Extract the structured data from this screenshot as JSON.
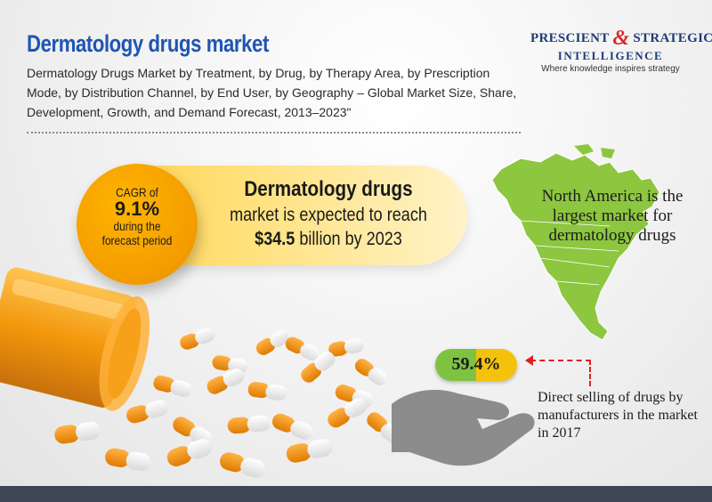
{
  "header": {
    "title": "Dermatology drugs market",
    "subtitle": "Dermatology Drugs Market by Treatment, by Drug, by Therapy Area, by Prescription Mode, by Distribution Channel, by End User, by Geography – Global Market Size, Share, Development, Growth, and Demand Forecast, 2013–2023\""
  },
  "logo": {
    "line1_a": "PRESCIENT",
    "amp": "&",
    "line1_b": "STRATEGIC",
    "line2": "INTELLIGENCE",
    "tagline": "Where knowledge inspires strategy"
  },
  "cagr": {
    "line1": "CAGR of",
    "value": "9.1%",
    "line3": "during the",
    "line4": "forecast period"
  },
  "forecast": {
    "line1": "Dermatology drugs",
    "line2": "market is expected to reach",
    "amount": "$34.5",
    "line3_rest": " billion by 2023"
  },
  "north_america": {
    "text": "North America is the largest market for dermatology drugs"
  },
  "direct_selling": {
    "value": "59.4%",
    "text": "Direct selling of drugs by manufacturers in the market in 2017"
  },
  "colors": {
    "title_blue": "#1f55b3",
    "orange": "#f39c00",
    "map_green": "#8dc63f",
    "badge_green": "#7ec242",
    "badge_yellow": "#f4c20d",
    "arrow_red": "#e02020",
    "footer": "#3d4654"
  }
}
